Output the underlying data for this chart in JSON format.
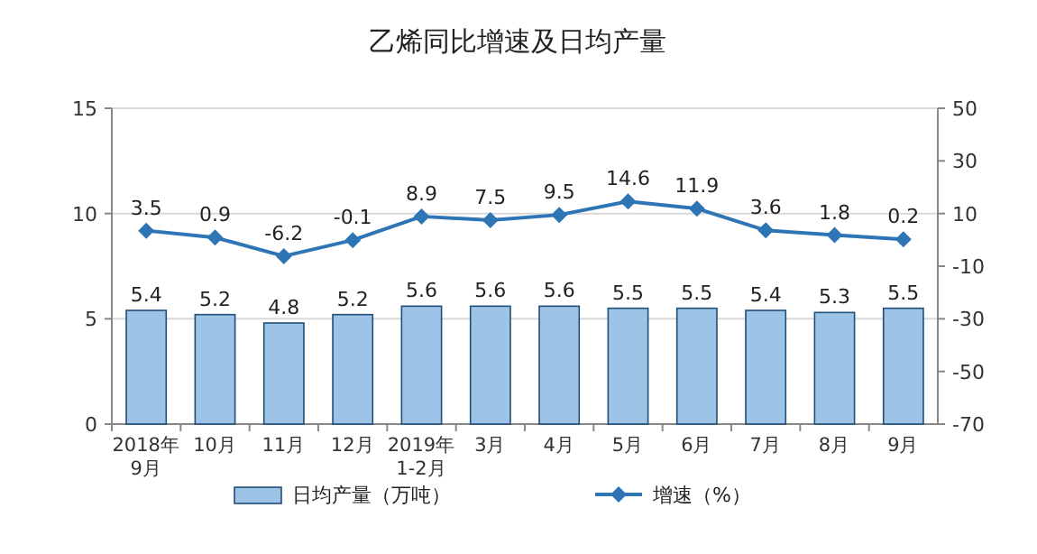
{
  "chart_data": {
    "type": "bar",
    "title": "乙烯同比增速及日均产量",
    "categories": [
      "2018年\n9月",
      "10月",
      "11月",
      "12月",
      "2019年\n1-2月",
      "3月",
      "4月",
      "5月",
      "6月",
      "7月",
      "8月",
      "9月"
    ],
    "series": [
      {
        "name": "日均产量（万吨）",
        "color": "#9dc3e6",
        "values": [
          5.4,
          5.2,
          4.8,
          5.2,
          5.6,
          5.6,
          5.6,
          5.5,
          5.5,
          5.4,
          5.3,
          5.5
        ]
      },
      {
        "name": "增速（%）",
        "type": "line",
        "axis": "y2",
        "color": "#2e75b6",
        "values": [
          3.5,
          0.9,
          -6.2,
          -0.1,
          8.9,
          7.5,
          9.5,
          14.6,
          11.9,
          3.6,
          1.8,
          0.2
        ]
      }
    ],
    "ylim": [
      0,
      15
    ],
    "yticks": [
      0,
      5,
      10,
      15
    ],
    "y2lim": [
      -70,
      50
    ],
    "y2ticks": [
      -70,
      -50,
      -30,
      -10,
      10,
      30,
      50
    ],
    "grid": "y",
    "legend": "bottom",
    "marker": "diamond",
    "data_labels": true
  }
}
